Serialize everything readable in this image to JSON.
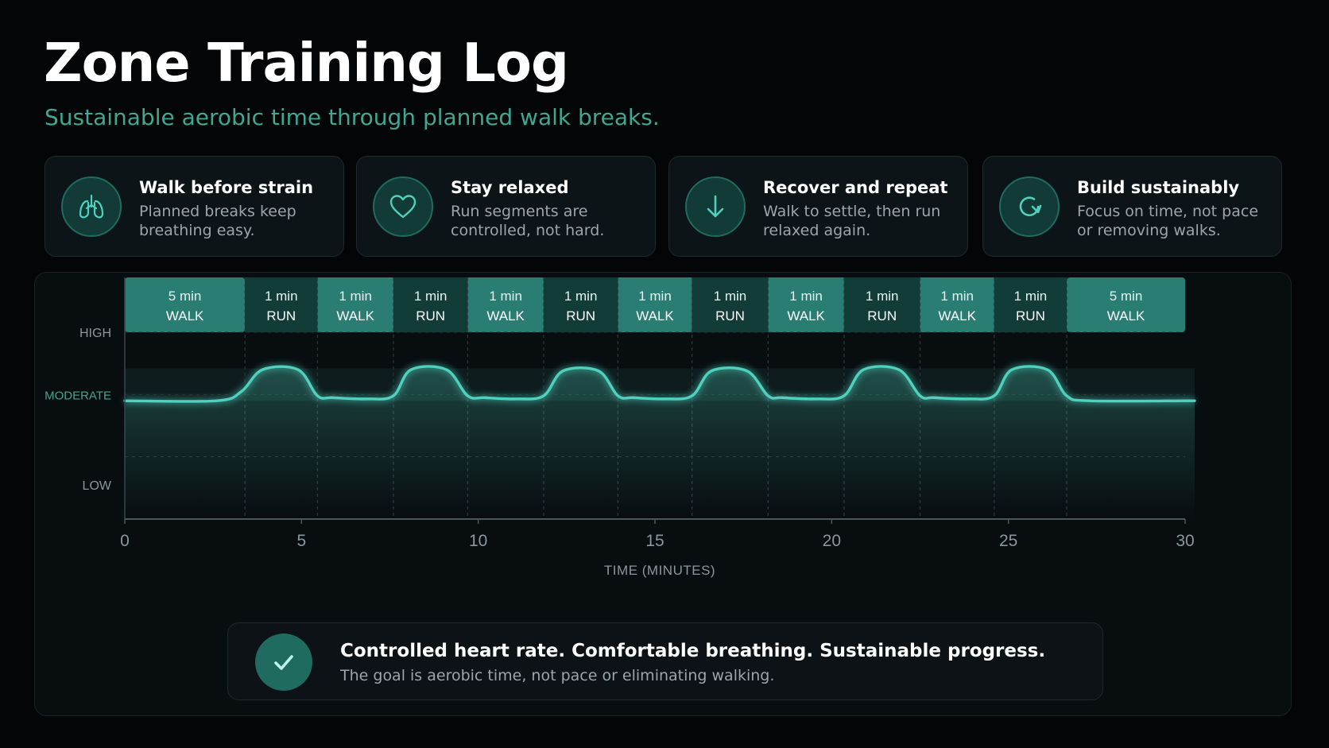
{
  "header": {
    "title": "Zone Training Log",
    "subtitle": "Sustainable aerobic time through planned walk breaks."
  },
  "cards": [
    {
      "icon": "lungs-icon",
      "title": "Walk before strain",
      "text": "Planned breaks keep breathing easy."
    },
    {
      "icon": "heart-icon",
      "title": "Stay relaxed",
      "text": "Run segments are controlled, not hard."
    },
    {
      "icon": "arrow-down-icon",
      "title": "Recover and repeat",
      "text": "Walk to settle, then run relaxed again."
    },
    {
      "icon": "refresh-icon",
      "title": "Build sustainably",
      "text": "Focus on time, not pace or removing walks."
    }
  ],
  "summary": {
    "icon": "checkmark-icon",
    "title": "Controlled heart rate. Comfortable breathing. Sustainable progress.",
    "text": "The goal is aerobic time, not pace or eliminating walking."
  },
  "colors": {
    "accent": "#4fd1bd",
    "accent_dark": "#1f6b60",
    "subtitle": "#3fa792",
    "walk_band": "#2a7d72",
    "run_band": "#123c38"
  },
  "chart_data": {
    "type": "line",
    "xlabel": "TIME (MINUTES)",
    "ylabel": "",
    "xlim": [
      0,
      30
    ],
    "x_ticks": [
      0,
      5,
      10,
      15,
      20,
      25,
      30
    ],
    "y_levels": [
      "LOW",
      "MODERATE",
      "HIGH"
    ],
    "ylim": [
      0,
      3
    ],
    "segments": [
      {
        "duration": "5 min",
        "type": "WALK"
      },
      {
        "duration": "1 min",
        "type": "RUN"
      },
      {
        "duration": "1 min",
        "type": "WALK"
      },
      {
        "duration": "1 min",
        "type": "RUN"
      },
      {
        "duration": "1 min",
        "type": "WALK"
      },
      {
        "duration": "1 min",
        "type": "RUN"
      },
      {
        "duration": "1 min",
        "type": "WALK"
      },
      {
        "duration": "1 min",
        "type": "RUN"
      },
      {
        "duration": "1 min",
        "type": "WALK"
      },
      {
        "duration": "1 min",
        "type": "RUN"
      },
      {
        "duration": "1 min",
        "type": "WALK"
      },
      {
        "duration": "1 min",
        "type": "RUN"
      },
      {
        "duration": "5 min",
        "type": "WALK"
      }
    ],
    "segment_boundaries": [
      0,
      3.4,
      5.45,
      7.6,
      9.7,
      11.85,
      13.95,
      16.05,
      18.2,
      20.35,
      22.5,
      24.6,
      26.65,
      30
    ],
    "series": [
      {
        "x": [
          0,
          2.6,
          3.3,
          3.9,
          4.9,
          5.45,
          5.9,
          6.9,
          7.6,
          8.1,
          9.1,
          9.7,
          10.2,
          11.1,
          11.85,
          12.4,
          13.4,
          13.95,
          14.4,
          15.3,
          16.05,
          16.6,
          17.6,
          18.2,
          18.6,
          19.6,
          20.35,
          20.9,
          21.9,
          22.5,
          22.9,
          23.9,
          24.6,
          25.1,
          26.1,
          26.65,
          27.3,
          30
        ],
        "y": [
          1.9,
          1.9,
          2.05,
          2.4,
          2.4,
          1.98,
          1.95,
          1.93,
          1.98,
          2.4,
          2.4,
          1.98,
          1.95,
          1.93,
          1.98,
          2.38,
          2.38,
          1.98,
          1.95,
          1.93,
          1.98,
          2.38,
          2.38,
          1.98,
          1.95,
          1.93,
          1.98,
          2.4,
          2.4,
          1.98,
          1.95,
          1.93,
          1.98,
          2.4,
          2.4,
          1.98,
          1.9,
          1.9
        ]
      }
    ],
    "grid": true,
    "legend": "none"
  }
}
